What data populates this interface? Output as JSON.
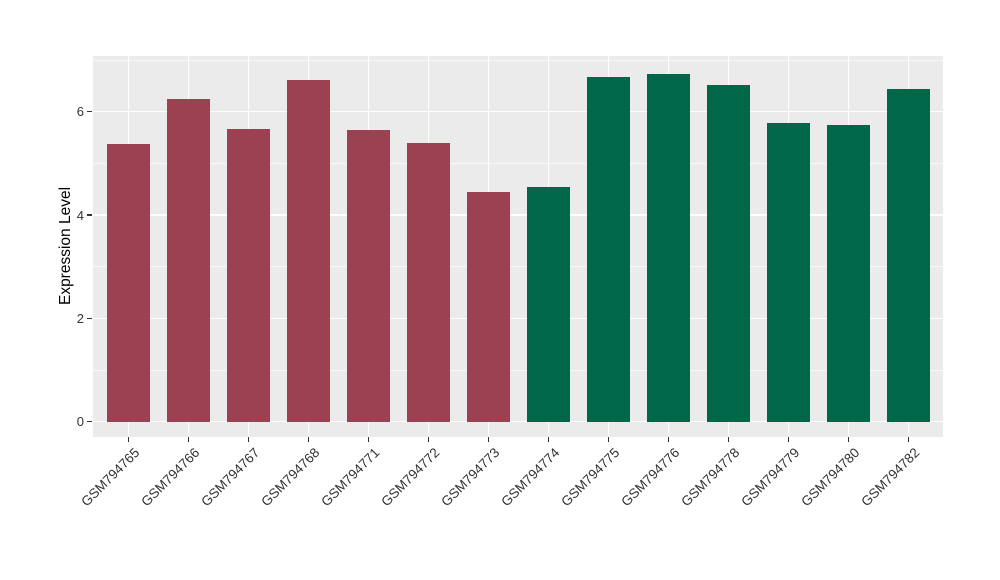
{
  "chart_data": {
    "type": "bar",
    "title": "",
    "xlabel": "",
    "ylabel": "Expression Level",
    "categories": [
      "GSM794765",
      "GSM794766",
      "GSM794767",
      "GSM794768",
      "GSM794771",
      "GSM794772",
      "GSM794773",
      "GSM794774",
      "GSM794775",
      "GSM794776",
      "GSM794778",
      "GSM794779",
      "GSM794780",
      "GSM794782"
    ],
    "values": [
      5.38,
      6.24,
      5.66,
      6.62,
      5.65,
      5.4,
      4.45,
      4.54,
      6.67,
      6.73,
      6.51,
      5.78,
      5.75,
      6.43
    ],
    "groups": [
      "group1",
      "group1",
      "group1",
      "group1",
      "group1",
      "group1",
      "group1",
      "group2",
      "group2",
      "group2",
      "group2",
      "group2",
      "group2",
      "group2"
    ],
    "group_colors": {
      "group1": "#9B4151",
      "group2": "#006849"
    },
    "y_major_ticks": [
      0,
      2,
      4,
      6
    ],
    "y_minor_ticks": [
      1,
      3,
      5,
      7
    ],
    "ylim": [
      -0.33,
      7.08
    ],
    "grid": "on",
    "legend": "none",
    "panel_background": "#EBEBEB",
    "gridline_color": "#FFFFFF",
    "axis_text_color": "#333333"
  }
}
